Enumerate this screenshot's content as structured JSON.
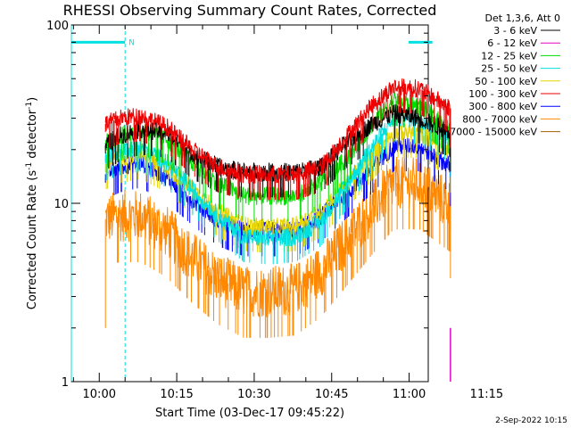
{
  "chart_data": {
    "type": "line",
    "title": "RHESSI Observing Summary Count Rates, Corrected",
    "xlabel": "Start Time (03-Dec-17 09:45:22)",
    "ylabel_main": "Corrected Count Rate (s",
    "ylabel_sup1": "-1",
    "ylabel_mid": " detector",
    "ylabel_sup2": "-1",
    "ylabel_end": ")",
    "yscale": "log",
    "ylim": [
      1,
      100
    ],
    "yticks": [
      {
        "value": 1,
        "label": "1"
      },
      {
        "value": 10,
        "label": "10"
      },
      {
        "value": 100,
        "label": "100"
      }
    ],
    "xlim_minutes": [
      -5.4,
      63.7
    ],
    "xticks": [
      {
        "minutes": 0,
        "label": "10:00"
      },
      {
        "minutes": 15,
        "label": "10:15"
      },
      {
        "minutes": 30,
        "label": "10:30"
      },
      {
        "minutes": 45,
        "label": "10:45"
      },
      {
        "minutes": 60,
        "label": "11:00"
      },
      {
        "minutes": 75,
        "label": "11:15"
      }
    ],
    "legend_title": "Det 1,3,6, Att 0",
    "legend_position": "outside-right",
    "data_start_minutes": -0.5,
    "data_end_minutes": 69.5,
    "bands": [
      {
        "name": "3 - 6 keV",
        "color": "#000000",
        "values": [
          0,
          20,
          24,
          26,
          25,
          19,
          16,
          15,
          15,
          15,
          16,
          22,
          28,
          32,
          30,
          24
        ]
      },
      {
        "name": "6 - 12 keV",
        "color": "#e600c8",
        "values": [
          0,
          0,
          0,
          0,
          0,
          0,
          0,
          0,
          0,
          0,
          0,
          0,
          0,
          0,
          0,
          0
        ]
      },
      {
        "name": "12 - 25 keV",
        "color": "#00dd00",
        "values": [
          0,
          21,
          24,
          26,
          23,
          17,
          13,
          11,
          11,
          11,
          13,
          18,
          28,
          38,
          35,
          24
        ]
      },
      {
        "name": "25 - 50 keV",
        "color": "#00e0e0",
        "values": [
          0,
          18,
          20,
          21,
          17,
          12,
          8.5,
          6.5,
          6.3,
          6.5,
          8,
          13,
          21,
          30,
          30,
          22
        ]
      },
      {
        "name": "50 - 100 keV",
        "color": "#e6d400",
        "values": [
          0,
          16,
          18,
          19,
          16,
          12,
          9,
          7.5,
          7.3,
          7.5,
          9,
          13,
          19,
          25,
          25,
          18
        ]
      },
      {
        "name": "100 - 300 keV",
        "color": "#ee0000",
        "values": [
          0,
          27,
          30,
          31,
          27,
          20,
          16,
          14.5,
          14.5,
          14.5,
          16,
          24,
          36,
          45,
          44,
          32
        ]
      },
      {
        "name": "300 - 800 keV",
        "color": "#0000ff",
        "values": [
          0,
          14,
          16,
          17,
          14,
          10.5,
          8,
          7,
          7,
          7,
          8.5,
          11.5,
          16,
          21,
          21,
          15
        ]
      },
      {
        "name": "800 - 7000 keV",
        "color": "#ff8800",
        "values": [
          0,
          8,
          8.5,
          8.5,
          7,
          5,
          3.8,
          3.2,
          3.2,
          3.3,
          4.2,
          6.3,
          9.5,
          13,
          13,
          9
        ]
      },
      {
        "name": "7000 - 15000 keV",
        "color": "#a06000",
        "values": [
          0,
          0,
          0,
          0,
          0,
          0,
          0,
          0,
          0,
          0,
          0,
          0,
          0,
          0,
          0,
          0
        ]
      }
    ],
    "profile_minutes": [
      -0.5,
      0,
      4,
      8,
      13,
      18,
      23,
      28,
      33,
      38,
      43,
      48,
      53,
      57,
      62,
      69.5
    ],
    "annotations": [
      {
        "name": "night-marker",
        "start_minutes": -5.4,
        "end_minutes": 5,
        "level": 80,
        "label": "N",
        "color": "#00e0e0"
      },
      {
        "name": "saa-marker",
        "start_minutes": 64.5,
        "end_minutes": 81,
        "level": 80,
        "label": "",
        "color": "#00e0e0"
      }
    ],
    "vlines": [
      {
        "minutes": -5.4,
        "style": "solid",
        "color": "#00e0e0"
      },
      {
        "minutes": 5,
        "style": "dashed",
        "color": "#00e0e0"
      },
      {
        "minutes": 64.5,
        "style": "solid",
        "color": "#00e0e0"
      },
      {
        "minutes": 81,
        "style": "dashed",
        "color": "#00e0e0"
      }
    ]
  },
  "timestamp": "2-Sep-2022 10:15"
}
